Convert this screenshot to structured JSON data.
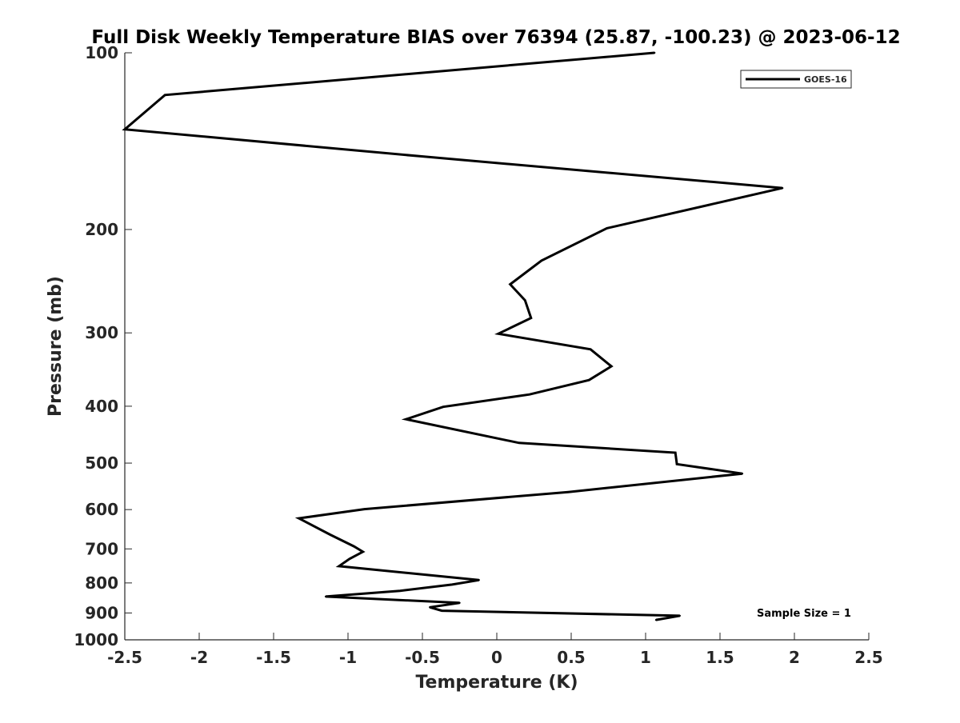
{
  "chart_data": {
    "type": "line",
    "title": "Full Disk Weekly Temperature BIAS over 76394 (25.87, -100.23) @ 2023-06-12",
    "xlabel": "Temperature (K)",
    "ylabel": "Pressure (mb)",
    "xlim": [
      -2.5,
      2.5
    ],
    "ylim": [
      100,
      1000
    ],
    "yscale": "log",
    "y_reversed": true,
    "grid": false,
    "legend_position": "top-right",
    "x_ticks": [
      -2.5,
      -2,
      -1.5,
      -1,
      -0.5,
      0,
      0.5,
      1,
      1.5,
      2,
      2.5
    ],
    "x_tick_labels": [
      "-2.5",
      "-2",
      "-1.5",
      "-1",
      "-0.5",
      "0",
      "0.5",
      "1",
      "1.5",
      "2",
      "2.5"
    ],
    "y_ticks": [
      100,
      200,
      300,
      400,
      500,
      600,
      700,
      800,
      900,
      1000
    ],
    "y_tick_labels": [
      "100",
      "200",
      "300",
      "400",
      "500",
      "600",
      "700",
      "800",
      "900",
      "1000"
    ],
    "annotation": "Sample Size = 1",
    "series": [
      {
        "name": "GOES-16",
        "color": "#000000",
        "points": [
          {
            "x": 1.06,
            "y": 100
          },
          {
            "x": -2.23,
            "y": 118
          },
          {
            "x": -2.5,
            "y": 135
          },
          {
            "x": -0.52,
            "y": 150
          },
          {
            "x": 1.92,
            "y": 170
          },
          {
            "x": 0.74,
            "y": 199
          },
          {
            "x": 0.3,
            "y": 226
          },
          {
            "x": 0.09,
            "y": 248
          },
          {
            "x": 0.19,
            "y": 264
          },
          {
            "x": 0.23,
            "y": 283
          },
          {
            "x": 0.01,
            "y": 301
          },
          {
            "x": 0.63,
            "y": 320
          },
          {
            "x": 0.77,
            "y": 342
          },
          {
            "x": 0.62,
            "y": 361
          },
          {
            "x": 0.22,
            "y": 382
          },
          {
            "x": -0.36,
            "y": 401
          },
          {
            "x": -0.61,
            "y": 421
          },
          {
            "x": 0.15,
            "y": 462
          },
          {
            "x": 1.2,
            "y": 480
          },
          {
            "x": 1.21,
            "y": 502
          },
          {
            "x": 1.65,
            "y": 521
          },
          {
            "x": 0.48,
            "y": 560
          },
          {
            "x": -0.89,
            "y": 599
          },
          {
            "x": -1.33,
            "y": 621
          },
          {
            "x": -1.12,
            "y": 662
          },
          {
            "x": -0.96,
            "y": 693
          },
          {
            "x": -0.9,
            "y": 708
          },
          {
            "x": -0.99,
            "y": 728
          },
          {
            "x": -1.06,
            "y": 749
          },
          {
            "x": -0.52,
            "y": 773
          },
          {
            "x": -0.12,
            "y": 791
          },
          {
            "x": -0.3,
            "y": 805
          },
          {
            "x": -0.65,
            "y": 825
          },
          {
            "x": -1.15,
            "y": 844
          },
          {
            "x": -0.25,
            "y": 865
          },
          {
            "x": -0.45,
            "y": 880
          },
          {
            "x": -0.37,
            "y": 892
          },
          {
            "x": 1.23,
            "y": 910
          },
          {
            "x": 1.07,
            "y": 925
          }
        ]
      }
    ]
  }
}
